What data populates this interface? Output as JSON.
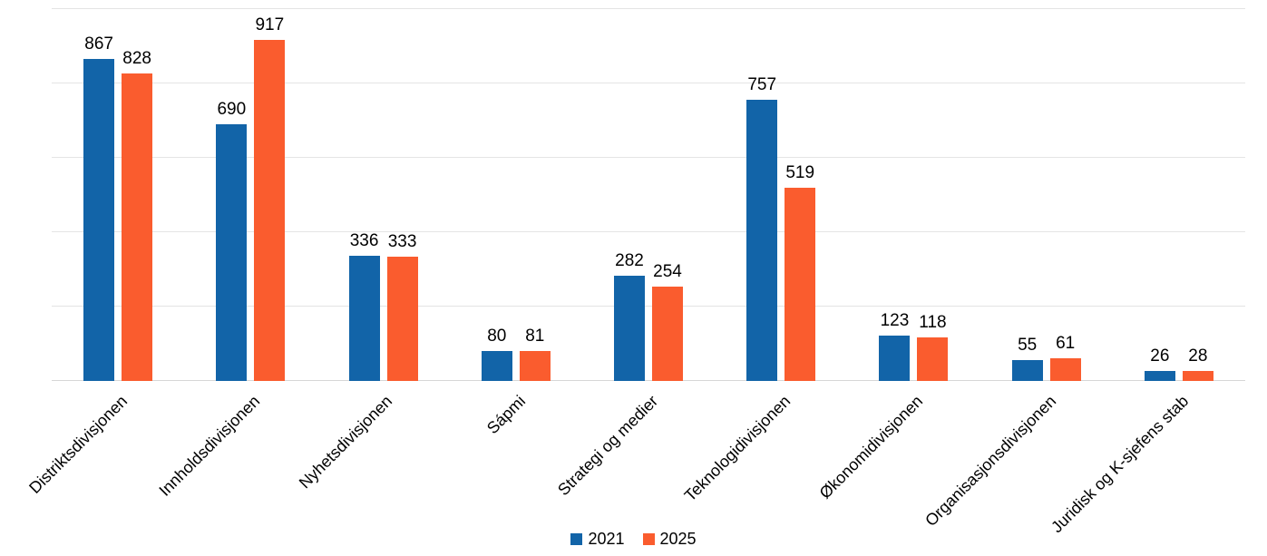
{
  "chart_data": {
    "type": "bar",
    "title": "",
    "xlabel": "",
    "ylabel": "",
    "categories": [
      "Distriktsdivisjonen",
      "Innholdsdivisjonen",
      "Nyhetsdivisjonen",
      "Sápmi",
      "Strategi og medier",
      "Teknologidivisjonen",
      "Økonomidivisjonen",
      "Organisasjonsdivisjonen",
      "Juridisk og K-sjefens stab"
    ],
    "series": [
      {
        "name": "2021",
        "color": "#1264a8",
        "values": [
          867,
          690,
          336,
          80,
          282,
          757,
          123,
          55,
          26
        ]
      },
      {
        "name": "2025",
        "color": "#fa5c2e",
        "values": [
          828,
          917,
          333,
          81,
          254,
          519,
          118,
          61,
          28
        ]
      }
    ],
    "value_labels_shown": true,
    "ylim": [
      0,
      1000
    ],
    "gridline_step": 200,
    "grid": true,
    "y_tick_labels_shown": false,
    "legend_position": "bottom",
    "colors": {
      "background": "#ffffff",
      "gridline": "#e4e4e4",
      "axis_line": "#d6d6d6",
      "text": "#000000"
    }
  }
}
